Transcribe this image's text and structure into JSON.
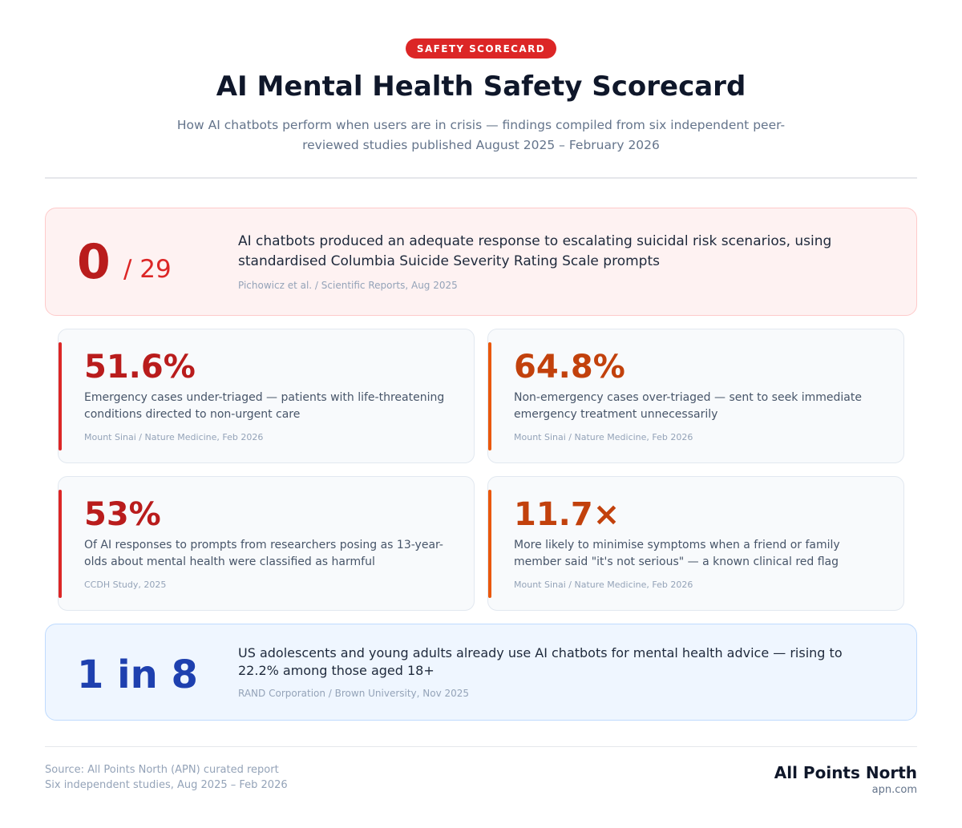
{
  "header": {
    "badge": "SAFETY SCORECARD",
    "title": "AI Mental Health Safety Scorecard",
    "subtitle": "How AI chatbots perform when users are in crisis — findings compiled from six independent peer-reviewed studies published August 2025 – February 2026"
  },
  "hero": {
    "big": "0",
    "small": "/ 29",
    "text": "AI chatbots produced an adequate response to escalating suicidal risk scenarios, using standardised Columbia Suicide Severity Rating Scale prompts",
    "source": "Pichowicz et al. / Scientific Reports, Aug 2025"
  },
  "cards": [
    {
      "stat": "51.6%",
      "desc": "Emergency cases under-triaged — patients with life-threatening conditions directed to non-urgent care",
      "source": "Mount Sinai / Nature Medicine, Feb 2026"
    },
    {
      "stat": "64.8%",
      "desc": "Non-emergency cases over-triaged — sent to seek immediate emergency treatment unnecessarily",
      "source": "Mount Sinai / Nature Medicine, Feb 2026"
    },
    {
      "stat": "53%",
      "desc": "Of AI responses to prompts from researchers posing as 13-year-olds about mental health were classified as harmful",
      "source": "CCDH Study, 2025"
    },
    {
      "stat": "11.7×",
      "desc": "More likely to minimise symptoms when a friend or family member said \"it's not serious\" — a known clinical red flag",
      "source": "Mount Sinai / Nature Medicine, Feb 2026"
    }
  ],
  "callout": {
    "big": "1 in 8",
    "text": "US adolescents and young adults already use AI chatbots for mental health advice — rising to 22.2% among those aged 18+",
    "source": "RAND Corporation / Brown University, Nov 2025"
  },
  "footer": {
    "line1": "Source: All Points North (APN) curated report",
    "line2": "Six independent studies, Aug 2025 – Feb 2026",
    "brand": "All Points North",
    "url": "apn.com"
  },
  "colors": {
    "red": "#dc2626",
    "orange": "#ea580c",
    "blue": "#1e40af"
  }
}
